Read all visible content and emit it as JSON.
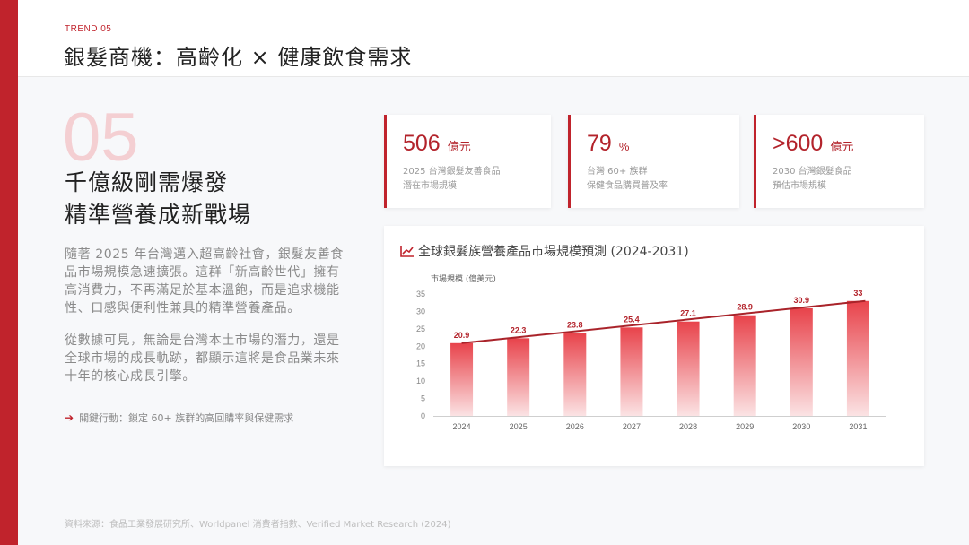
{
  "header": {
    "trend_label": "TREND 05",
    "title": "銀髮商機：高齡化 × 健康飲食需求"
  },
  "section": {
    "number": "05",
    "headline_line1": "千億級剛需爆發",
    "headline_line2": "精準營養成新戰場",
    "paragraph1": "隨著 2025 年台灣邁入超高齡社會，銀髮友善食品市場規模急速擴張。這群「新高齡世代」擁有高消費力，不再滿足於基本溫飽，而是追求機能性、口感與便利性兼具的精準營養產品。",
    "paragraph2": "從數據可見，無論是台灣本土市場的潛力，還是全球市場的成長軌跡，都顯示這將是食品業未來十年的核心成長引擎。",
    "action_label": "關鍵行動：鎖定 60+ 族群的高回購率與保健需求"
  },
  "stats": [
    {
      "value": "506",
      "unit": "億元",
      "desc_line1": "2025 台灣銀髮友善食品",
      "desc_line2": "潛在市場規模"
    },
    {
      "value": "79",
      "unit": "%",
      "desc_line1": "台灣 60+ 族群",
      "desc_line2": "保健食品購買普及率"
    },
    {
      "value": ">600",
      "unit": "億元",
      "desc_line1": "2030 台灣銀髮食品",
      "desc_line2": "預估市場規模"
    }
  ],
  "footer": {
    "source": "資料來源：食品工業發展研究所、Worldpanel 消費者指數、Verified Market Research (2024)"
  },
  "colors": {
    "accent": "#c0232c",
    "bar_top": "#e8434b",
    "bar_bottom": "#fbe3e4",
    "trend_line": "#a9232a"
  },
  "chart_data": {
    "type": "bar",
    "title": "全球銀髮族營養產品市場規模預測 (2024-2031)",
    "ylabel": "市場規模 (億美元)",
    "xlabel": "",
    "categories": [
      "2024",
      "2025",
      "2026",
      "2027",
      "2028",
      "2029",
      "2030",
      "2031"
    ],
    "values": [
      20.9,
      22.3,
      23.8,
      25.4,
      27.1,
      28.9,
      30.9,
      33
    ],
    "ylim": [
      0,
      35
    ],
    "yticks": [
      0,
      5,
      10,
      15,
      20,
      25,
      30,
      35
    ],
    "grid": false,
    "trend_line": true,
    "data_labels": true
  }
}
